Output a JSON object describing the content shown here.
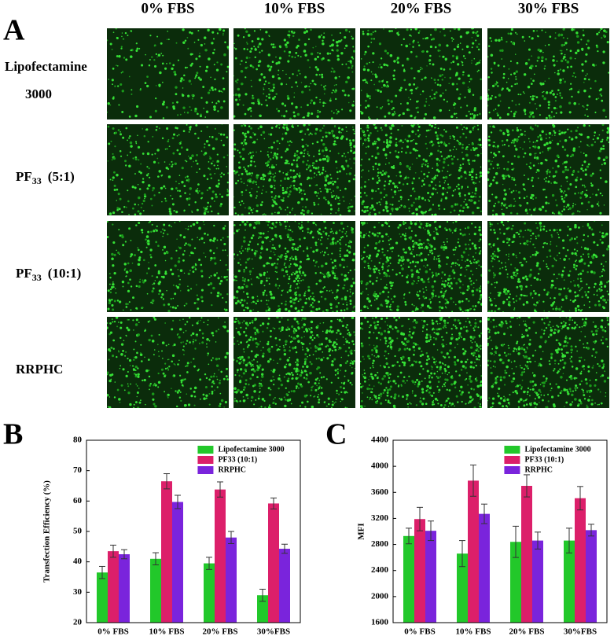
{
  "panel_a": {
    "label": "A",
    "columns": [
      "0% FBS",
      "10% FBS",
      "20% FBS",
      "30% FBS"
    ],
    "rows": [
      {
        "lines": [
          "Lipofectamine",
          "3000"
        ]
      },
      {
        "main": "PF",
        "sub": "33",
        "suffix": "(5:1)"
      },
      {
        "main": "PF",
        "sub": "33",
        "suffix": "(10:1)"
      },
      {
        "main": "RRPHC"
      }
    ]
  },
  "chart_data": [
    {
      "type": "bar",
      "panel": "B",
      "y_label": "Transfection Efficiency (%)",
      "categories": [
        "0% FBS",
        "10% FBS",
        "20% FBS",
        "30%FBS"
      ],
      "ylim": [
        20,
        80
      ],
      "yticks": [
        20,
        30,
        40,
        50,
        60,
        70,
        80
      ],
      "legend": "top-right",
      "series": [
        {
          "name": "Lipofectamine 3000",
          "color": "#22c82a",
          "values": [
            36.5,
            41,
            39.5,
            29
          ],
          "errors": [
            2,
            2,
            2,
            2
          ]
        },
        {
          "name": "PF33 (10:1)",
          "color": "#dc1f6a",
          "values": [
            43.5,
            66.5,
            63.8,
            59.2
          ],
          "errors": [
            2,
            2.5,
            2.5,
            1.8
          ]
        },
        {
          "name": "RRPHC",
          "color": "#7a24dc",
          "values": [
            42.5,
            59.7,
            48,
            44.3
          ],
          "errors": [
            1.5,
            2.2,
            2,
            1.5
          ]
        }
      ]
    },
    {
      "type": "bar",
      "panel": "C",
      "y_label": "MFI",
      "categories": [
        "0% FBS",
        "10% FBS",
        "20% FBS",
        "30%FBS"
      ],
      "ylim": [
        1600,
        4400
      ],
      "yticks": [
        1600,
        2000,
        2400,
        2800,
        3200,
        3600,
        4000,
        4400
      ],
      "legend": "top-right",
      "series": [
        {
          "name": "Lipofectamine 3000",
          "color": "#22c82a",
          "values": [
            2930,
            2660,
            2840,
            2860
          ],
          "errors": [
            120,
            200,
            240,
            190
          ]
        },
        {
          "name": "PF33 (10:1)",
          "color": "#dc1f6a",
          "values": [
            3190,
            3780,
            3700,
            3510
          ],
          "errors": [
            180,
            240,
            170,
            180
          ]
        },
        {
          "name": "RRPHC",
          "color": "#7a24dc",
          "values": [
            3010,
            3270,
            2860,
            3020
          ],
          "errors": [
            150,
            150,
            130,
            90
          ]
        }
      ]
    }
  ]
}
